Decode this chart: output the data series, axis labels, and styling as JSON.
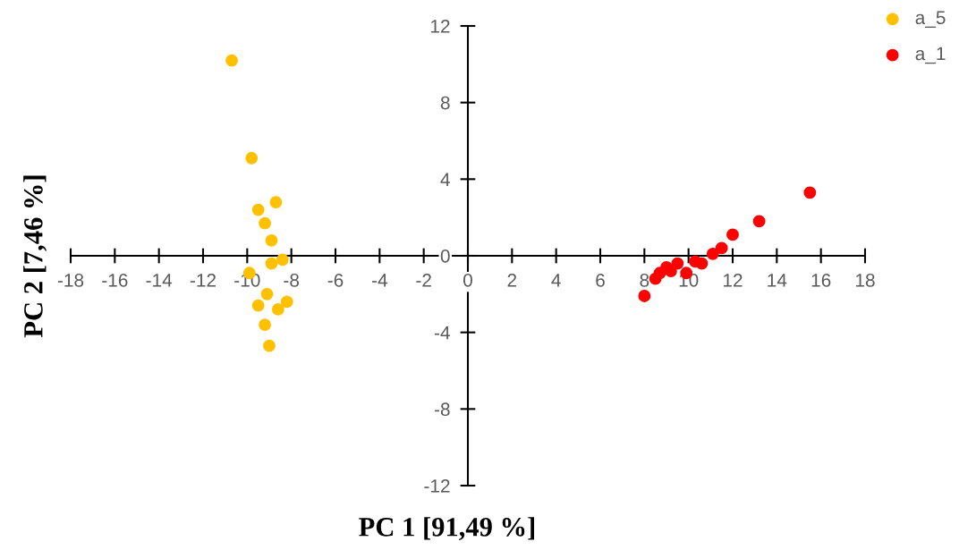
{
  "chart_data": {
    "type": "scatter",
    "xlabel": "PC 1 [91,49 %]",
    "ylabel": "PC 2 [7,46 %]",
    "xlim": [
      -18,
      18
    ],
    "ylim": [
      -12,
      12
    ],
    "xticks": [
      -18,
      -16,
      -14,
      -12,
      -10,
      -8,
      -6,
      -4,
      -2,
      0,
      2,
      4,
      6,
      8,
      10,
      12,
      14,
      16,
      18
    ],
    "yticks": [
      -12,
      -8,
      -4,
      0,
      4,
      8,
      12
    ],
    "grid": false,
    "legend": "top right",
    "marker": "circle",
    "series": [
      {
        "name": "a_5",
        "color": "#ffc000",
        "x": [
          -10.7,
          -9.8,
          -9.5,
          -8.7,
          -9.2,
          -8.9,
          -8.9,
          -8.4,
          -9.9,
          -9.1,
          -9.5,
          -8.6,
          -8.2,
          -9.2,
          -9.0
        ],
        "values": [
          10.2,
          5.1,
          2.4,
          2.8,
          1.7,
          0.8,
          -0.4,
          -0.2,
          -0.9,
          -2.0,
          -2.6,
          -2.8,
          -2.4,
          -3.6,
          -4.7
        ]
      },
      {
        "name": "a_1",
        "color": "#ff0000",
        "x": [
          8.0,
          8.5,
          8.7,
          9.0,
          9.2,
          9.5,
          9.9,
          10.3,
          10.6,
          11.1,
          11.5,
          12.0,
          13.2,
          15.5
        ],
        "values": [
          -2.1,
          -1.2,
          -0.9,
          -0.6,
          -0.8,
          -0.4,
          -0.9,
          -0.3,
          -0.4,
          0.1,
          0.4,
          1.1,
          1.8,
          3.3
        ]
      }
    ]
  }
}
